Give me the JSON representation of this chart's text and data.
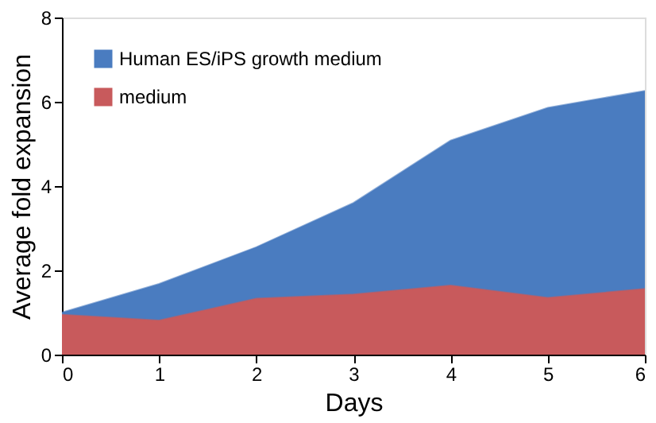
{
  "chart_data": {
    "type": "area",
    "xlabel": "Days",
    "ylabel": "Average fold expansion",
    "x": [
      0,
      1,
      2,
      3,
      4,
      5,
      6
    ],
    "series": [
      {
        "name": "Human ES/iPS growth medium",
        "color": "#4a7cc0",
        "values": [
          1.0,
          1.68,
          2.55,
          3.6,
          5.08,
          5.86,
          6.26
        ]
      },
      {
        "name": "medium",
        "color": "#c85a5c",
        "values": [
          0.95,
          0.81,
          1.33,
          1.43,
          1.64,
          1.35,
          1.56
        ]
      }
    ],
    "xlim": [
      0,
      6
    ],
    "xticks": [
      0,
      1,
      2,
      3,
      4,
      5,
      6
    ],
    "ylim": [
      0,
      8
    ],
    "yticks": [
      0,
      2,
      4,
      6,
      8
    ],
    "grid": false,
    "legend": "top left"
  }
}
